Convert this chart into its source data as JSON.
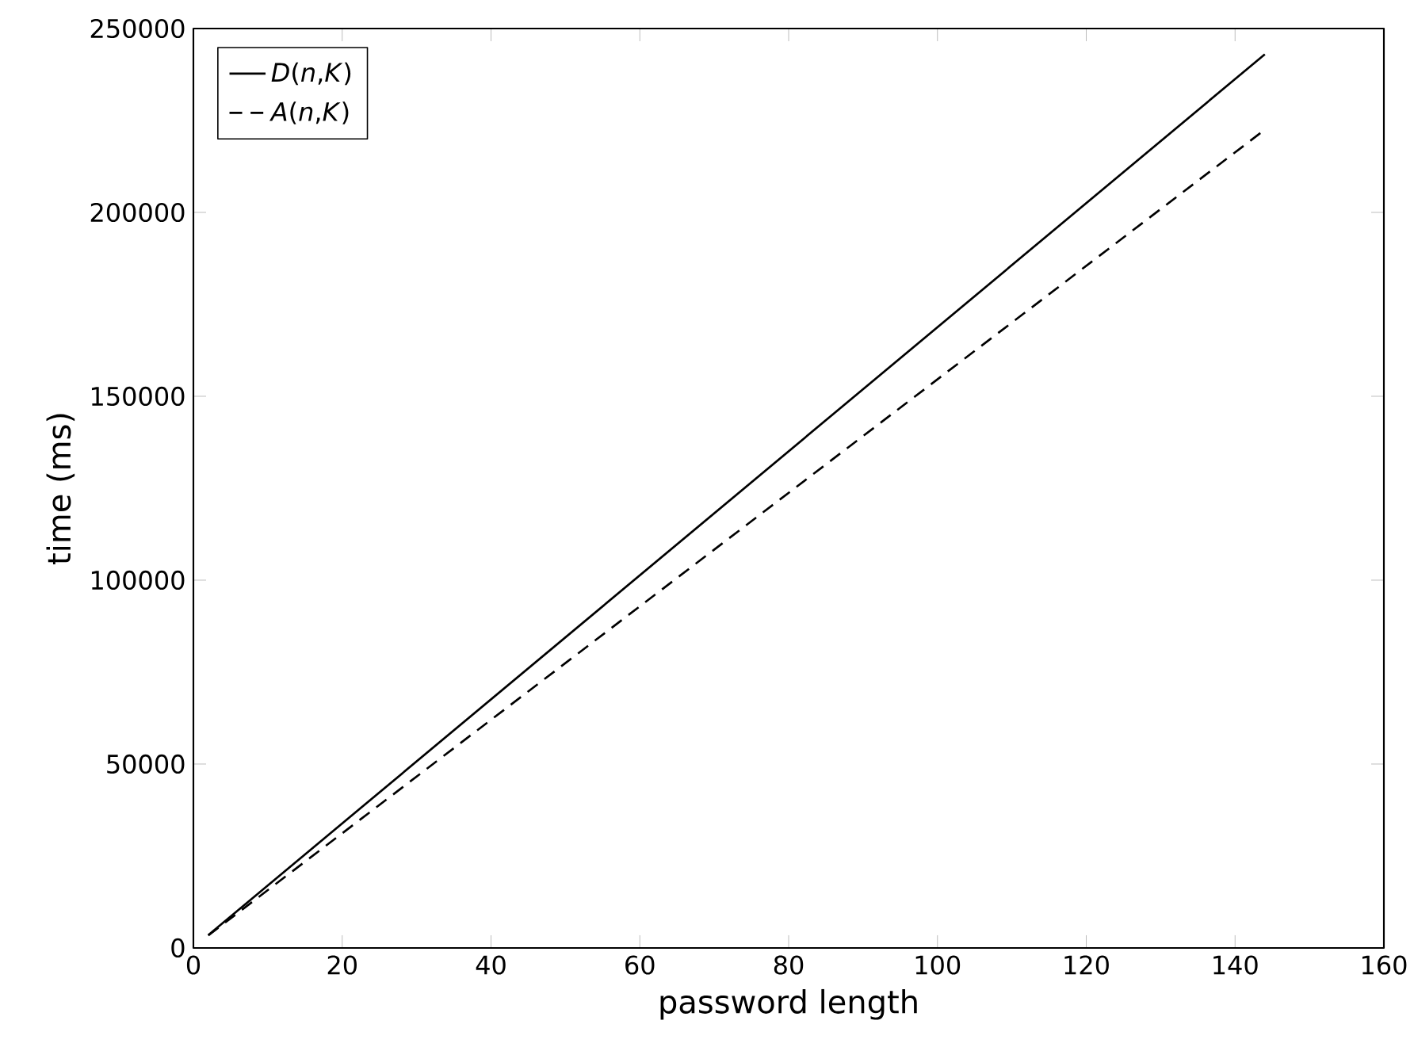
{
  "chart_data": {
    "type": "line",
    "xlabel": "password length",
    "ylabel": "time (ms)",
    "xlim": [
      0,
      160
    ],
    "ylim": [
      0,
      250000
    ],
    "xticks": [
      0,
      20,
      40,
      60,
      80,
      100,
      120,
      140,
      160
    ],
    "yticks": [
      0,
      50000,
      100000,
      150000,
      200000,
      250000
    ],
    "x": [
      2,
      144
    ],
    "series": [
      {
        "name": "*D*(*n*,*K*)",
        "color": "#000000",
        "line_style": "solid",
        "values": [
          3500,
          243000
        ]
      },
      {
        "name": "*A*(*n*,*K*)",
        "color": "#000000",
        "line_style": "dashed",
        "values": [
          3400,
          222500
        ]
      }
    ],
    "legend": "top left",
    "grid": false,
    "marker": "none"
  }
}
